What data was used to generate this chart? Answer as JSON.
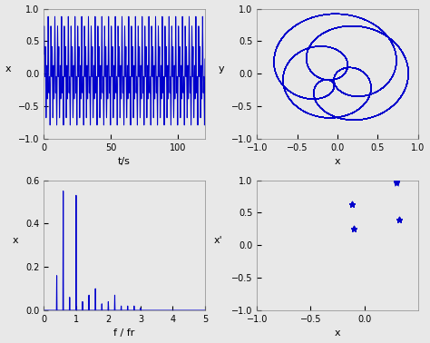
{
  "bg_color": "#e8e8e8",
  "line_color": "#0000CC",
  "line_width": 0.7,
  "ax1": {
    "xlabel": "t/s",
    "ylabel": "x",
    "xlim": [
      0,
      120
    ],
    "ylim": [
      -1,
      1
    ],
    "xticks": [
      0,
      50,
      100
    ],
    "yticks": [
      -1,
      -0.5,
      0,
      0.5,
      1
    ]
  },
  "ax2": {
    "xlabel": "x",
    "ylabel": "y",
    "xlim": [
      -1,
      1
    ],
    "ylim": [
      -1,
      1
    ],
    "xticks": [
      -1,
      -0.5,
      0,
      0.5,
      1
    ],
    "yticks": [
      -1,
      -0.5,
      0,
      0.5,
      1
    ]
  },
  "ax3": {
    "xlabel": "f / fr",
    "ylabel": "x",
    "xlim": [
      0,
      5
    ],
    "ylim": [
      0,
      0.6
    ],
    "xticks": [
      0,
      1,
      2,
      3,
      4,
      5
    ],
    "yticks": [
      0,
      0.2,
      0.4,
      0.6
    ]
  },
  "ax4": {
    "xlabel": "x",
    "ylabel": "x'",
    "xlim": [
      -1,
      0.5
    ],
    "ylim": [
      -1,
      1
    ],
    "xticks": [
      -1,
      -0.5,
      0
    ],
    "yticks": [
      -1,
      -0.5,
      0,
      0.5,
      1
    ]
  },
  "marker_color": "#0000CC",
  "marker_style": "*",
  "marker_size": 22,
  "freq_peaks": {
    "freqs": [
      0.4,
      0.6,
      0.8,
      1.0,
      1.2,
      1.4,
      1.6,
      1.8,
      2.0,
      2.2,
      2.4,
      2.6,
      2.8,
      3.0
    ],
    "amps": [
      0.16,
      0.55,
      0.06,
      0.53,
      0.04,
      0.07,
      0.1,
      0.03,
      0.04,
      0.07,
      0.02,
      0.02,
      0.02,
      0.01
    ]
  }
}
